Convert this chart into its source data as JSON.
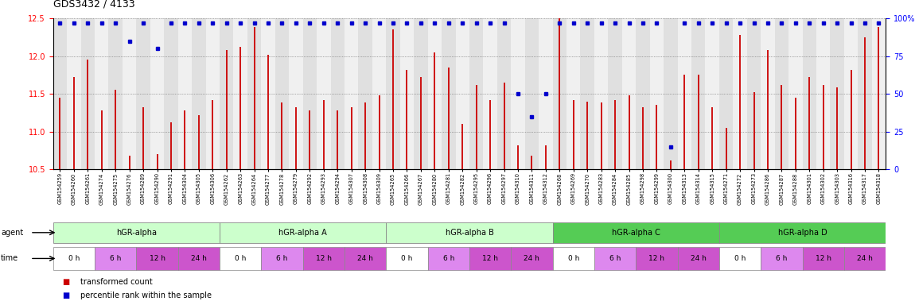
{
  "title": "GDS3432 / 4133",
  "sample_ids": [
    "GSM154259",
    "GSM154260",
    "GSM154261",
    "GSM154274",
    "GSM154275",
    "GSM154276",
    "GSM154289",
    "GSM154290",
    "GSM154291",
    "GSM154304",
    "GSM154305",
    "GSM154306",
    "GSM154262",
    "GSM154263",
    "GSM154264",
    "GSM154277",
    "GSM154278",
    "GSM154279",
    "GSM154292",
    "GSM154293",
    "GSM154294",
    "GSM154307",
    "GSM154308",
    "GSM154309",
    "GSM154265",
    "GSM154266",
    "GSM154267",
    "GSM154280",
    "GSM154281",
    "GSM154282",
    "GSM154295",
    "GSM154296",
    "GSM154297",
    "GSM154310",
    "GSM154311",
    "GSM154312",
    "GSM154268",
    "GSM154269",
    "GSM154270",
    "GSM154283",
    "GSM154284",
    "GSM154285",
    "GSM154298",
    "GSM154299",
    "GSM154300",
    "GSM154313",
    "GSM154314",
    "GSM154315",
    "GSM154271",
    "GSM154272",
    "GSM154273",
    "GSM154286",
    "GSM154287",
    "GSM154288",
    "GSM154301",
    "GSM154302",
    "GSM154303",
    "GSM154316",
    "GSM154317",
    "GSM154318"
  ],
  "bar_values": [
    11.45,
    11.72,
    11.95,
    11.28,
    11.55,
    10.68,
    11.32,
    10.7,
    11.12,
    11.28,
    11.22,
    11.42,
    12.08,
    12.12,
    12.38,
    12.02,
    11.38,
    11.32,
    11.28,
    11.42,
    11.28,
    11.32,
    11.38,
    11.48,
    12.35,
    11.82,
    11.72,
    12.05,
    11.85,
    11.1,
    11.62,
    11.42,
    11.65,
    10.82,
    10.68,
    10.82,
    12.55,
    11.42,
    11.4,
    11.38,
    11.42,
    11.48,
    11.32,
    11.35,
    10.62,
    11.75,
    11.75,
    11.32,
    11.05,
    12.28,
    11.52,
    12.08,
    11.62,
    11.45,
    11.72,
    11.62,
    11.58,
    11.82,
    12.25,
    12.38
  ],
  "percentile_values": [
    97,
    97,
    97,
    97,
    97,
    85,
    97,
    80,
    97,
    97,
    97,
    97,
    97,
    97,
    97,
    97,
    97,
    97,
    97,
    97,
    97,
    97,
    97,
    97,
    97,
    97,
    97,
    97,
    97,
    97,
    97,
    97,
    97,
    50,
    35,
    50,
    97,
    97,
    97,
    97,
    97,
    97,
    97,
    97,
    15,
    97,
    97,
    97,
    97,
    97,
    97,
    97,
    97,
    97,
    97,
    97,
    97,
    97,
    97,
    97
  ],
  "agents": [
    {
      "label": "hGR-alpha",
      "start": 0,
      "end": 12,
      "color": "#ccffcc"
    },
    {
      "label": "hGR-alpha A",
      "start": 12,
      "end": 24,
      "color": "#ccffcc"
    },
    {
      "label": "hGR-alpha B",
      "start": 24,
      "end": 36,
      "color": "#ccffcc"
    },
    {
      "label": "hGR-alpha C",
      "start": 36,
      "end": 48,
      "color": "#55cc55"
    },
    {
      "label": "hGR-alpha D",
      "start": 48,
      "end": 60,
      "color": "#55cc55"
    }
  ],
  "time_labels": [
    "0 h",
    "6 h",
    "12 h",
    "24 h"
  ],
  "time_colors": [
    "#ffffff",
    "#dd88ee",
    "#cc55cc",
    "#cc55cc"
  ],
  "ylim": [
    10.5,
    12.5
  ],
  "yticks_left": [
    10.5,
    11.0,
    11.5,
    12.0,
    12.5
  ],
  "yticks_right": [
    0,
    25,
    50,
    75,
    100
  ],
  "bar_color": "#cc0000",
  "dot_color": "#0000cc",
  "bg_color": "#ffffff",
  "grid_color": "#666666",
  "xtick_bg_even": "#e0e0e0",
  "xtick_bg_odd": "#f0f0f0",
  "legend_red": "transformed count",
  "legend_blue": "percentile rank within the sample",
  "n_groups": 5,
  "samples_per_group": 12,
  "time_points_per_group": 4,
  "samples_per_timepoint": 3
}
